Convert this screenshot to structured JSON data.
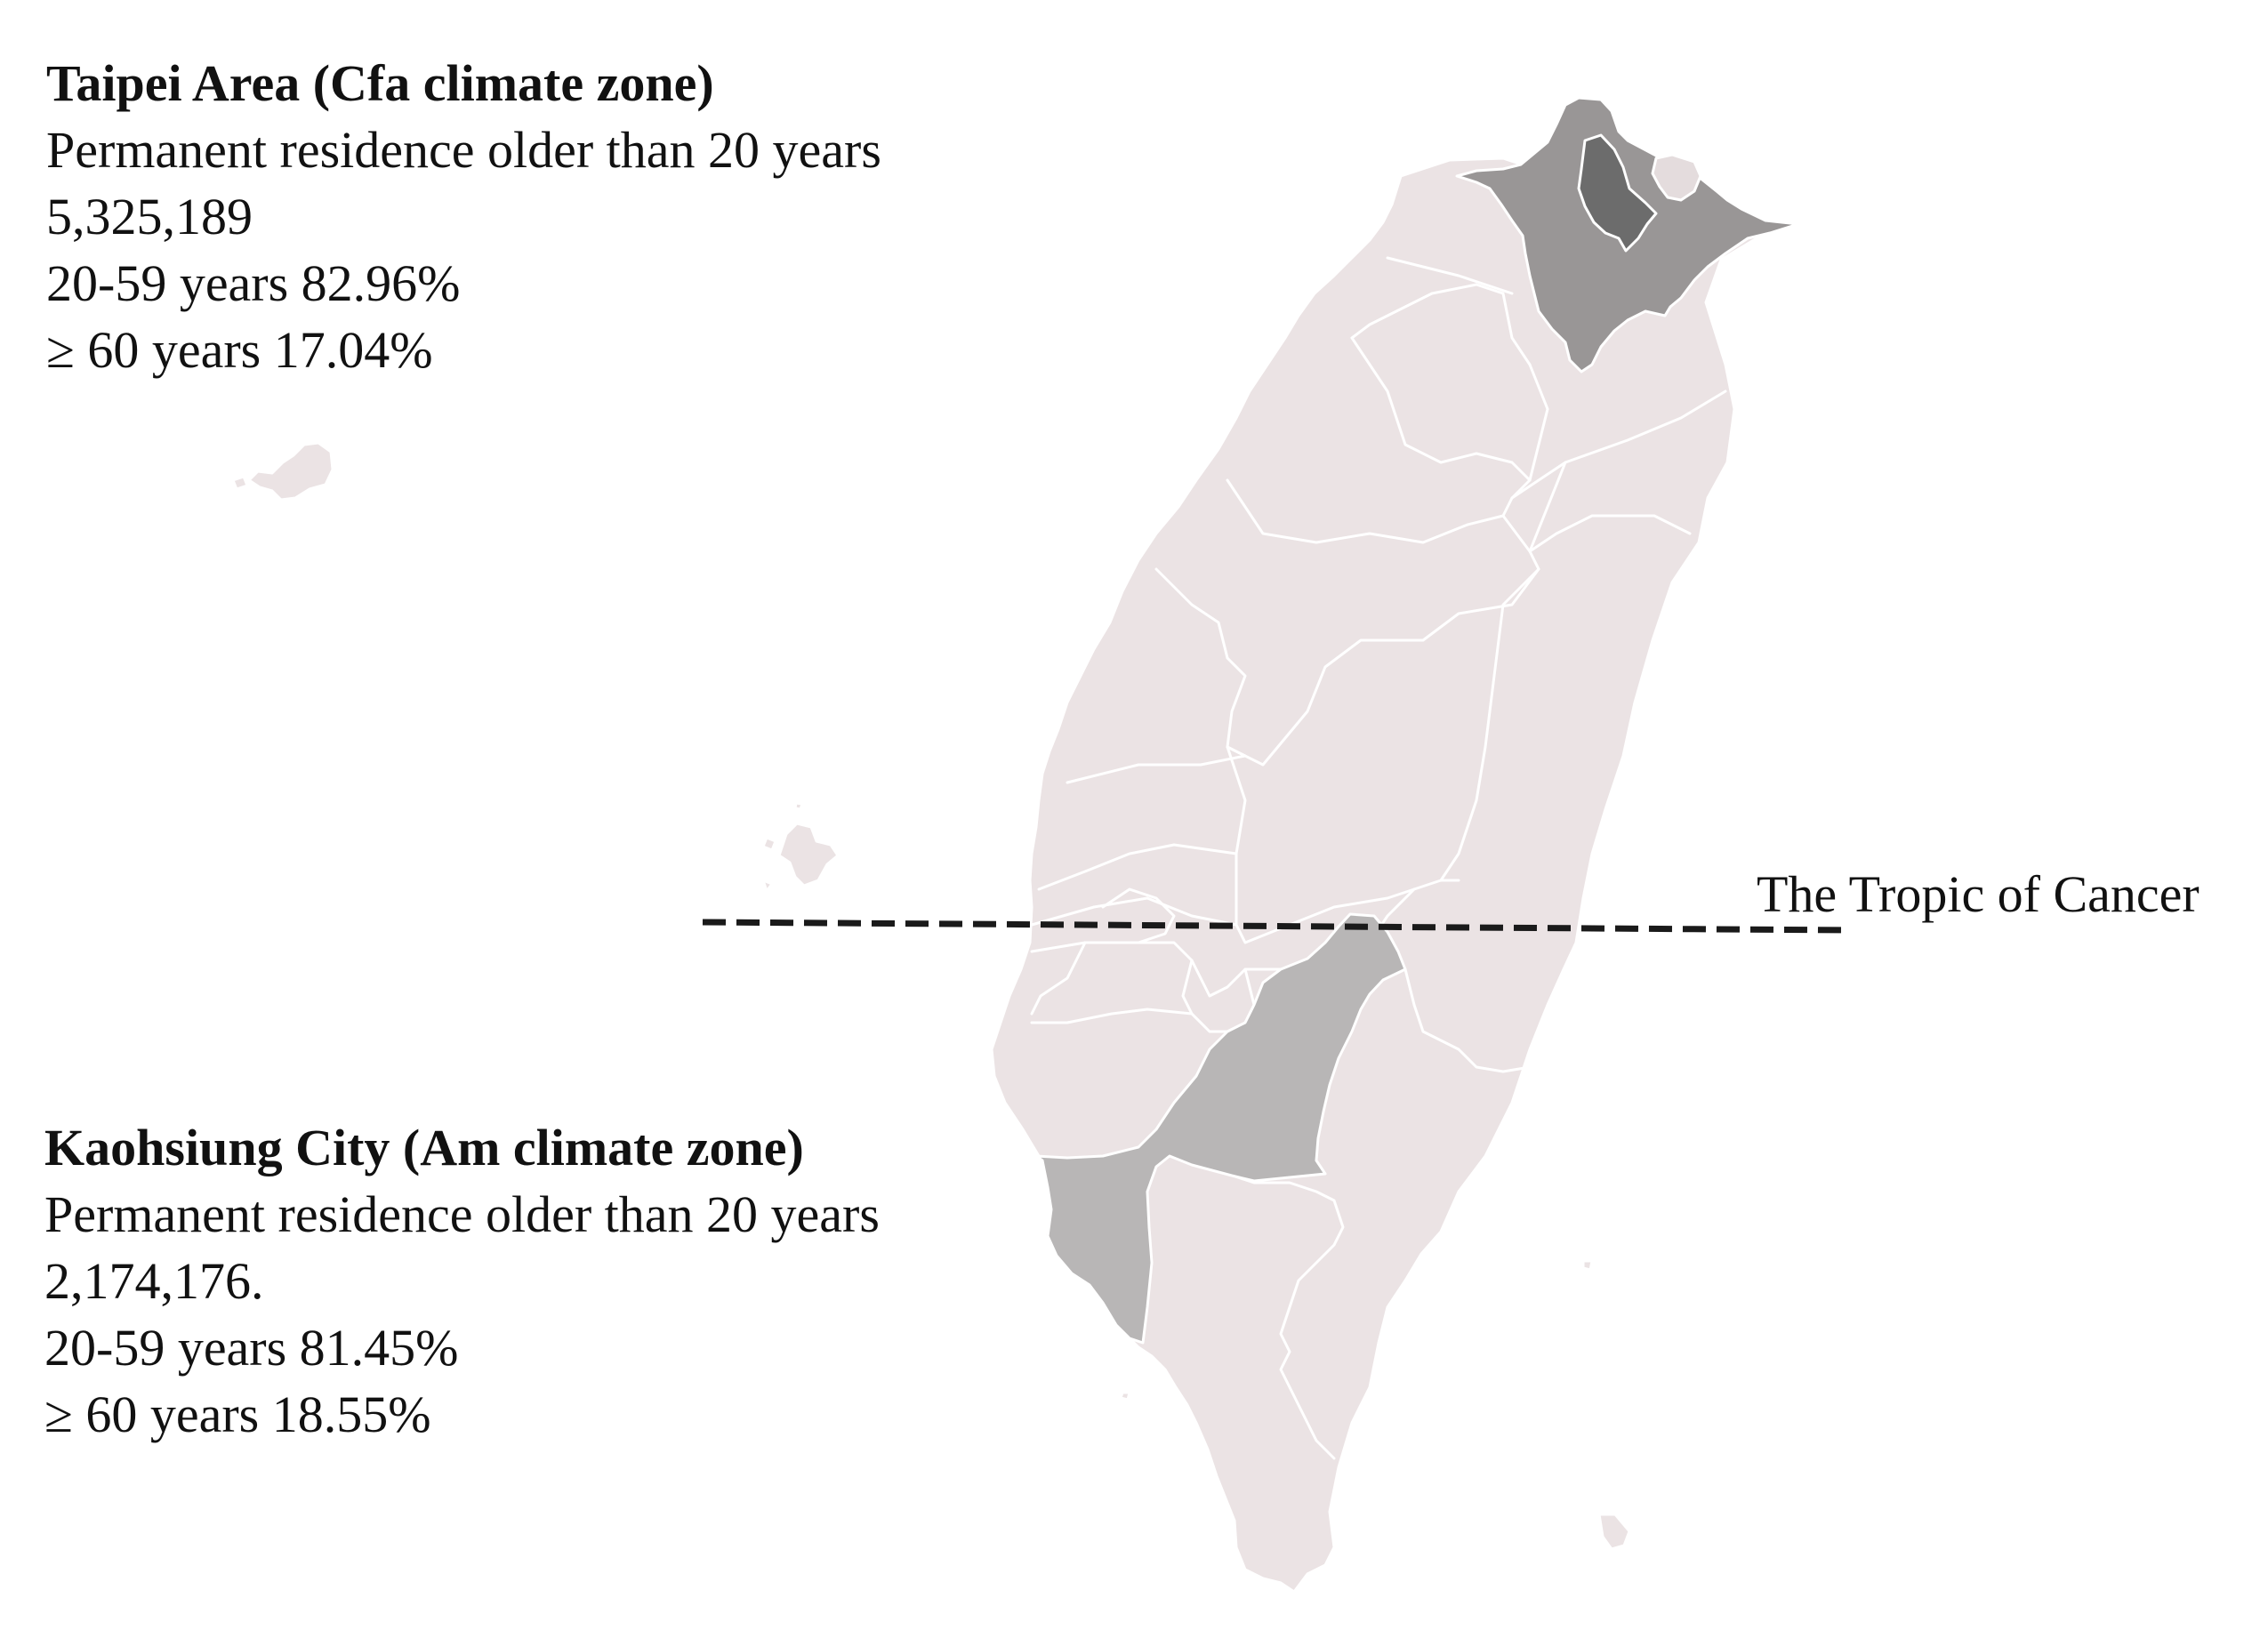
{
  "taipei": {
    "heading": "Taipei Area (Cfa climate zone)",
    "description": "Permanent residence older than 20 years",
    "population": "5,325,189",
    "age_20_59": "20-59 years 82.96%",
    "age_60_plus": "≥ 60 years 17.04%"
  },
  "kaohsiung": {
    "heading": "Kaohsiung City (Am climate zone)",
    "description": "Permanent residence older than 20 years",
    "population": "2,174,176.",
    "age_20_59": "20-59 years 81.45%",
    "age_60_plus": "≥ 60 years 18.55%"
  },
  "tropic_label": "The Tropic of Cancer",
  "colors": {
    "land": "#ebe3e4",
    "border": "#ffffff",
    "taipei_city": "#6c6c6c",
    "new_taipei": "#999696",
    "keelung": "#e4dcdd",
    "kaohsiung": "#b8b6b6",
    "tropic_line": "#1a1a1a",
    "text": "#111111"
  }
}
